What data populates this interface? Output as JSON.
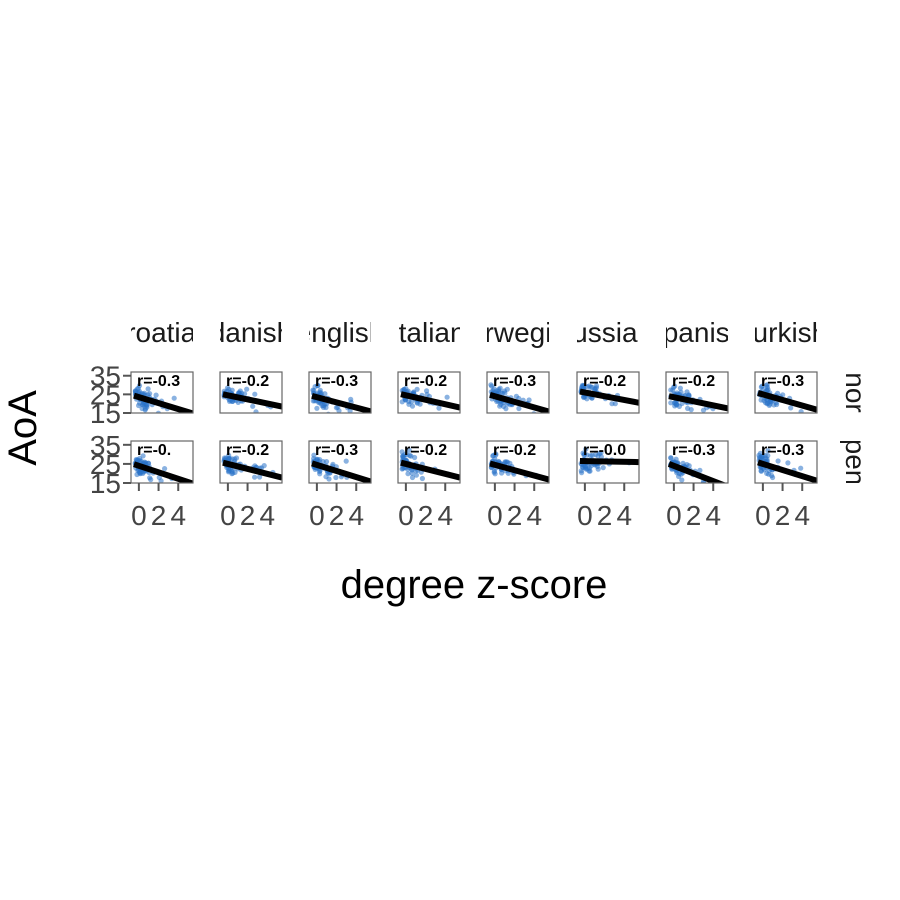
{
  "chart_data": {
    "type": "scatter",
    "facet_columns": [
      "croatian",
      "danish",
      "english",
      "italian",
      "norwegian",
      "russian",
      "spanish",
      "turkish"
    ],
    "facet_rows": [
      "nor",
      "pen"
    ],
    "xlabel": "degree z-score",
    "ylabel": "AoA",
    "x_ticks": [
      0,
      2,
      4
    ],
    "y_ticks": [
      15,
      25,
      35
    ],
    "xlim": [
      -0.8,
      5.5
    ],
    "ylim": [
      15,
      37
    ],
    "point_color": "#2a73c9",
    "line_color": "#000000",
    "panels": [
      {
        "column": "croatian",
        "row": "nor",
        "r_label": "r=-0.3",
        "fit": {
          "intercept": 23.5,
          "slope": -1.6
        }
      },
      {
        "column": "danish",
        "row": "nor",
        "r_label": "r=-0.2",
        "fit": {
          "intercept": 24.5,
          "slope": -1.1
        }
      },
      {
        "column": "english",
        "row": "nor",
        "r_label": "r=-0.3",
        "fit": {
          "intercept": 23.5,
          "slope": -1.4
        }
      },
      {
        "column": "italian",
        "row": "nor",
        "r_label": "r=-0.2",
        "fit": {
          "intercept": 24.5,
          "slope": -1.2
        }
      },
      {
        "column": "norwegian",
        "row": "nor",
        "r_label": "r=-0.3",
        "fit": {
          "intercept": 24.0,
          "slope": -1.5
        }
      },
      {
        "column": "russian",
        "row": "nor",
        "r_label": "r=-0.2",
        "fit": {
          "intercept": 26.0,
          "slope": -1.0
        }
      },
      {
        "column": "spanish",
        "row": "nor",
        "r_label": "r=-0.2",
        "fit": {
          "intercept": 23.5,
          "slope": -1.1
        }
      },
      {
        "column": "turkish",
        "row": "nor",
        "r_label": "r=-0.3",
        "fit": {
          "intercept": 25.0,
          "slope": -1.5
        }
      },
      {
        "column": "croatian",
        "row": "pen",
        "r_label": "r=-0.",
        "fit": {
          "intercept": 24.0,
          "slope": -1.7
        }
      },
      {
        "column": "danish",
        "row": "pen",
        "r_label": "r=-0.2",
        "fit": {
          "intercept": 25.0,
          "slope": -1.3
        }
      },
      {
        "column": "english",
        "row": "pen",
        "r_label": "r=-0.3",
        "fit": {
          "intercept": 24.5,
          "slope": -1.6
        }
      },
      {
        "column": "italian",
        "row": "pen",
        "r_label": "r=-0.2",
        "fit": {
          "intercept": 25.0,
          "slope": -1.3
        }
      },
      {
        "column": "norwegian",
        "row": "pen",
        "r_label": "r=-0.2",
        "fit": {
          "intercept": 24.5,
          "slope": -1.4
        }
      },
      {
        "column": "russian",
        "row": "pen",
        "r_label": "r=-0.0",
        "fit": {
          "intercept": 26.5,
          "slope": -0.1
        }
      },
      {
        "column": "spanish",
        "row": "pen",
        "r_label": "r=-0.3",
        "fit": {
          "intercept": 24.0,
          "slope": -2.0
        }
      },
      {
        "column": "turkish",
        "row": "pen",
        "r_label": "r=-0.3",
        "fit": {
          "intercept": 25.0,
          "slope": -1.6
        }
      }
    ]
  }
}
